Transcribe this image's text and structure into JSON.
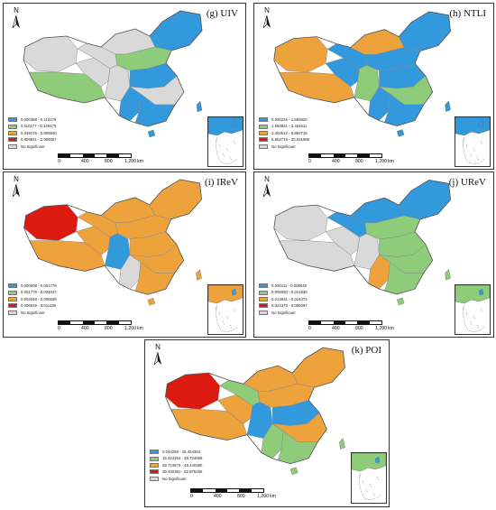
{
  "colors": {
    "c1": "#3399dd",
    "c2": "#8fcc7a",
    "c3": "#eea23c",
    "c4": "#dd1a10",
    "ns": "#d9d9d9"
  },
  "north_label": "N",
  "scale": {
    "ticks": [
      "0",
      "400",
      "800",
      "1,200"
    ],
    "unit": "km"
  },
  "panels": [
    {
      "title": "(g) UIV",
      "legend": [
        "0.000468 - 0.110176",
        "0.110177 - 0.349175",
        "0.349176 - 0.809840",
        "0.809841 - 2.900057",
        "No Significant"
      ],
      "fill": [
        "ns",
        "c2",
        "ns",
        "ns",
        "ns",
        "c1",
        "ns",
        "c1",
        "c2",
        "c1",
        "ns",
        "c1"
      ]
    },
    {
      "title": "(h) NTLI",
      "legend": [
        "0.000226 - 1.583820",
        "1.583821 - 3.404511",
        "3.404512 - 5.962718",
        "5.962719 - 20.031989",
        "No Significant"
      ],
      "fill": [
        "c3",
        "c3",
        "c1",
        "c1",
        "c3",
        "c1",
        "c2",
        "c1",
        "c1",
        "c1",
        "c2",
        "c1"
      ]
    },
    {
      "title": "(i) IReV",
      "legend": [
        "0.000008 - 0.001778",
        "0.001779 - 0.003347",
        "0.003348 - 0.006538",
        "0.006539 - 0.011136",
        "No Significant"
      ],
      "fill": [
        "c4",
        "c3",
        "c3",
        "c3",
        "c3",
        "c3",
        "c1",
        "ns",
        "c3",
        "c3",
        "c3",
        "c3"
      ]
    },
    {
      "title": "(j) UReV",
      "legend": [
        "0.000111 - 0.008049",
        "0.008050 - 0.014830",
        "0.014831 - 0.024372",
        "0.024373 - 0.055097",
        "No Significant"
      ],
      "fill": [
        "ns",
        "ns",
        "ns",
        "c1",
        "c1",
        "c1",
        "ns",
        "c3",
        "c2",
        "c2",
        "c2",
        "c2"
      ]
    },
    {
      "title": "(k) POI",
      "legend": [
        "0.044268 - 15.424363",
        "15.424364 - 28.724669",
        "28.724670 - 49.440380",
        "49.440381 - 82.975255",
        "No Significant"
      ],
      "fill": [
        "c4",
        "c3",
        "c3",
        "c2",
        "c3",
        "c3",
        "c1",
        "c2",
        "c3",
        "c1",
        "c3",
        "c2"
      ]
    }
  ]
}
